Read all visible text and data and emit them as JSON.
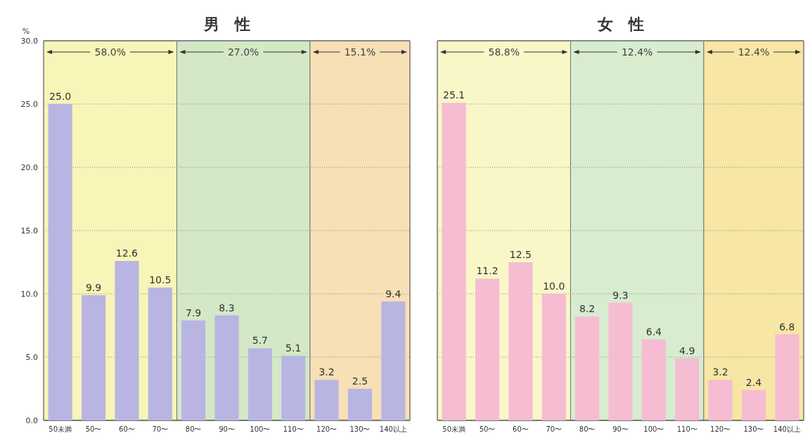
{
  "chart_data": [
    {
      "type": "bar",
      "title": "男　性",
      "ylabel": "%",
      "categories": [
        "50未満",
        "50〜",
        "60〜",
        "70〜",
        "80〜",
        "90〜",
        "100〜",
        "110〜",
        "120〜",
        "130〜",
        "140以上"
      ],
      "values": [
        25.0,
        9.9,
        12.6,
        10.5,
        7.9,
        8.3,
        5.7,
        5.1,
        3.2,
        2.5,
        9.4
      ],
      "color": "#b9b5e2",
      "value_labels": [
        "25.0",
        "9.9",
        "12.6",
        "10.5",
        "7.9",
        "8.3",
        "5.7",
        "5.1",
        "3.2",
        "2.5",
        "9.4"
      ],
      "ylim": [
        0,
        30
      ],
      "yticks": [
        {
          "value": 0,
          "label": "0.0"
        },
        {
          "value": 5,
          "label": "5.0"
        },
        {
          "value": 10,
          "label": "10.0"
        },
        {
          "value": 15,
          "label": "15.0"
        },
        {
          "value": 20,
          "label": "20.0"
        },
        {
          "value": 25,
          "label": "25.0"
        },
        {
          "value": 30,
          "label": "30.0"
        }
      ],
      "grid": "y",
      "bands": [
        {
          "axis": "x",
          "from": "50未満",
          "to": "70〜",
          "label": "58.0%",
          "color": "#f8f5b8"
        },
        {
          "axis": "x",
          "from": "80〜",
          "to": "110〜",
          "label": "27.0%",
          "color": "#d3e8c6"
        },
        {
          "axis": "x",
          "from": "120〜",
          "to": "140以上",
          "label": "15.1%",
          "color": "#f7dfb6"
        }
      ]
    },
    {
      "type": "bar",
      "title": "女　性",
      "categories": [
        "50未満",
        "50〜",
        "60〜",
        "70〜",
        "80〜",
        "90〜",
        "100〜",
        "110〜",
        "120〜",
        "130〜",
        "140以上"
      ],
      "values": [
        25.1,
        11.2,
        12.5,
        10.0,
        8.2,
        9.3,
        6.4,
        4.9,
        3.2,
        2.4,
        6.8
      ],
      "color": "#f5bcd2",
      "value_labels": [
        "25.1",
        "11.2",
        "12.5",
        "10.0",
        "8.2",
        "9.3",
        "6.4",
        "4.9",
        "3.2",
        "2.4",
        "6.8"
      ],
      "ylim": [
        0,
        30
      ],
      "yticks": [
        {
          "value": 0,
          "label": "0.0"
        },
        {
          "value": 5,
          "label": "5.0"
        },
        {
          "value": 10,
          "label": "10.0"
        },
        {
          "value": 15,
          "label": "15.0"
        },
        {
          "value": 20,
          "label": "20.0"
        },
        {
          "value": 25,
          "label": "25.0"
        },
        {
          "value": 30,
          "label": "30.0"
        }
      ],
      "grid": "y",
      "tick_labels": "x",
      "bands": [
        {
          "axis": "x",
          "from": "50未満",
          "to": "70〜",
          "label": "58.8%",
          "color": "#f9f7c8"
        },
        {
          "axis": "x",
          "from": "80〜",
          "to": "110〜",
          "label": "12.4%",
          "color": "#d8ecd0"
        },
        {
          "axis": "x",
          "from": "120〜",
          "to": "140以上",
          "label": "12.4%",
          "color": "#f7e6a4"
        }
      ]
    }
  ]
}
